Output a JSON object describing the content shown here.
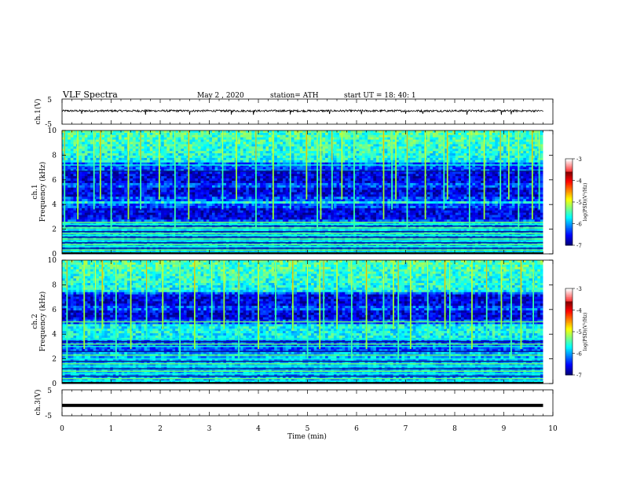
{
  "header": {
    "title": "VLF  Spectra",
    "date": "May 2  , 2020",
    "station": "station= ATH",
    "start": "start  UT  =   18: 40: 1"
  },
  "chart_data": [
    {
      "type": "line",
      "name": "ch1-waveform",
      "ylabel": "ch.1(V)",
      "ylim": [
        -5,
        5
      ],
      "ytick_labels": [
        "5",
        "-5"
      ],
      "baseline": 0.3,
      "noise_amplitude": 0.4,
      "spike_times_min": [
        0.4,
        1.7,
        2.6,
        3.45,
        3.9,
        4.65,
        5.45,
        6.1,
        7.0,
        7.35,
        8.25,
        8.95,
        9.15
      ]
    },
    {
      "type": "heatmap",
      "name": "ch1-spectrogram",
      "ylabel": "ch.1\nFrequency (kHz)",
      "ylabel_lines": [
        "ch.1",
        "Frequency  (kHz)"
      ],
      "ylim": [
        0,
        10
      ],
      "y_ticks": [
        0,
        2,
        4,
        6,
        8,
        10
      ],
      "ytick_labels": [
        "0",
        "2",
        "4",
        "6",
        "8",
        "10"
      ],
      "xlim": [
        0,
        9.8
      ],
      "z_unit": "log(PSD)(V^2/Hz)",
      "zlim": [
        -7,
        -3
      ],
      "z_ticks": [
        -3,
        -4,
        -5,
        -6,
        -7
      ],
      "colorbar_label": "log(PSD)(V²/Hz)",
      "colorbar_tick_labels": [
        "-3",
        "-4",
        "-5",
        "-6",
        "-7"
      ],
      "sferic_times_min": [
        0.05,
        0.32,
        0.65,
        0.78,
        1.0,
        1.35,
        1.6,
        1.98,
        2.3,
        2.58,
        3.27,
        3.55,
        3.95,
        4.3,
        4.65,
        4.98,
        5.2,
        5.27,
        5.5,
        5.7,
        5.95,
        6.55,
        6.72,
        6.8,
        7.03,
        7.4,
        7.78,
        7.85,
        8.3,
        8.6,
        8.93,
        9.1,
        9.3,
        9.58,
        9.72
      ],
      "noisy_bands_khz": [
        [
          7.5,
          10
        ],
        [
          4.0,
          4.3
        ]
      ],
      "quiet_bands_khz": [
        [
          2.8,
          3.7
        ],
        [
          4.6,
          5.4
        ],
        [
          5.8,
          6.6
        ]
      ],
      "line_frequencies_khz": [
        0.15,
        0.3,
        0.45,
        0.6,
        0.75,
        0.9,
        1.05,
        1.2,
        1.35,
        1.5,
        1.65,
        1.8,
        1.95,
        2.1,
        2.25,
        2.4,
        2.55,
        6.7,
        7.2
      ]
    },
    {
      "type": "heatmap",
      "name": "ch2-spectrogram",
      "ylabel": "ch.2\nFrequency (kHz)",
      "ylabel_lines": [
        "ch.2",
        "Frequency  (kHz)"
      ],
      "ylim": [
        0,
        10
      ],
      "y_ticks": [
        0,
        2,
        4,
        6,
        8,
        10
      ],
      "ytick_labels": [
        "0",
        "2",
        "4",
        "6",
        "8",
        "10"
      ],
      "xlim": [
        0,
        9.8
      ],
      "z_unit": "log(PSD)(V^2/Hz)",
      "zlim": [
        -7,
        -3
      ],
      "z_ticks": [
        -3,
        -4,
        -5,
        -6,
        -7
      ],
      "colorbar_label": "log(PSD)(V²/Hz)",
      "colorbar_tick_labels": [
        "-3",
        "-4",
        "-5",
        "-6",
        "-7"
      ],
      "sferic_times_min": [
        0.1,
        0.45,
        0.68,
        0.82,
        1.1,
        1.4,
        1.72,
        2.05,
        2.4,
        2.7,
        3.05,
        3.3,
        3.6,
        4.0,
        4.35,
        4.7,
        5.0,
        5.25,
        5.33,
        5.6,
        5.9,
        6.2,
        6.55,
        6.75,
        6.85,
        7.1,
        7.45,
        7.8,
        7.9,
        8.35,
        8.65,
        8.95,
        9.15,
        9.35,
        9.6
      ],
      "noisy_bands_khz": [
        [
          7.5,
          10
        ],
        [
          3.5,
          4.8
        ]
      ],
      "quiet_bands_khz": [
        [
          5.2,
          6.0
        ],
        [
          6.3,
          7.2
        ]
      ],
      "line_frequencies_khz": [
        0.2,
        0.4,
        0.6,
        0.8,
        1.0,
        1.2,
        1.4,
        1.6,
        1.8,
        2.0,
        2.3,
        2.6,
        3.0,
        3.2,
        3.4,
        3.6,
        5.0
      ]
    },
    {
      "type": "line",
      "name": "ch3-waveform",
      "ylabel": "ch.3(V)",
      "ylim": [
        -5,
        5
      ],
      "ytick_labels": [
        "5",
        "-5"
      ],
      "baseline": -1.0
    }
  ],
  "x_axis": {
    "xlabel": "Time  (min)",
    "xlim": [
      0,
      10
    ],
    "ticks": [
      0,
      1,
      2,
      3,
      4,
      5,
      6,
      7,
      8,
      9,
      10
    ],
    "tick_labels": [
      "0",
      "1",
      "2",
      "3",
      "4",
      "5",
      "6",
      "7",
      "8",
      "9",
      "10"
    ],
    "data_end_min": 9.8
  }
}
